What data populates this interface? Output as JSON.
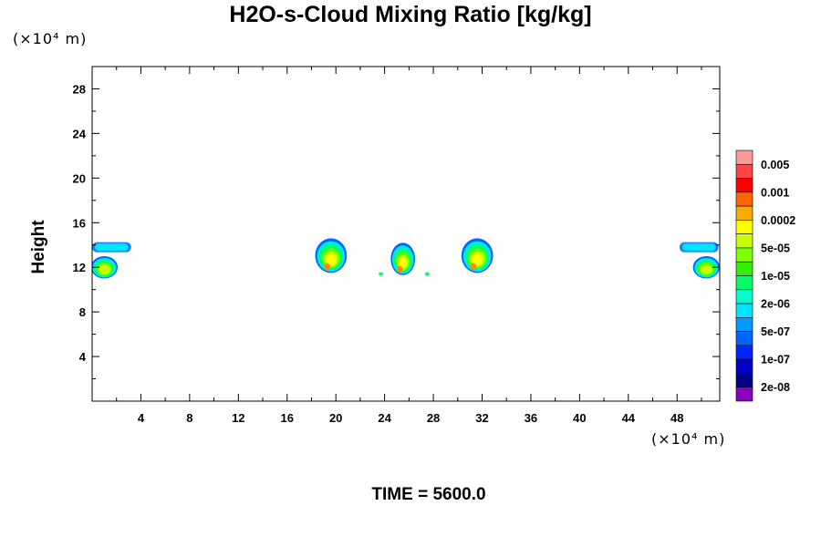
{
  "chart_data": {
    "type": "heatmap",
    "title": "H2O-s-Cloud Mixing Ratio [kg/kg]",
    "ylabel": "Height",
    "y_unit": "(×10⁴ m)",
    "x_unit": "(×10⁴ m)",
    "footer": "TIME = 5600.0",
    "xlim": [
      0,
      51.5
    ],
    "ylim": [
      0,
      30
    ],
    "xticks": [
      "4",
      "8",
      "12",
      "16",
      "20",
      "24",
      "28",
      "32",
      "36",
      "40",
      "44",
      "48"
    ],
    "yticks": [
      "4",
      "8",
      "12",
      "16",
      "20",
      "24",
      "28"
    ],
    "colorbar": {
      "labels": [
        "0.005",
        "0.001",
        "0.0002",
        "5e-05",
        "1e-05",
        "2e-06",
        "5e-07",
        "1e-07",
        "2e-08"
      ],
      "colors": [
        "#ff9999",
        "#ff4444",
        "#ff0000",
        "#ff6600",
        "#ffaa00",
        "#ffff00",
        "#c8ff00",
        "#80ff00",
        "#33ee00",
        "#00ff66",
        "#00ffcc",
        "#00e5ff",
        "#0099ff",
        "#0066ff",
        "#0022ff",
        "#0000cc",
        "#000088",
        "#8800bb"
      ]
    },
    "features": [
      {
        "kind": "anvil",
        "x_center": 1.6,
        "width": 3.2,
        "y": 13.8,
        "thickness": 0.9,
        "level": "1e-07"
      },
      {
        "kind": "core",
        "x_center": 1.0,
        "width": 2.2,
        "y_bottom": 11.0,
        "y_top": 13.0,
        "peak": "5e-05"
      },
      {
        "kind": "core",
        "x_center": 19.6,
        "width": 2.6,
        "y_bottom": 11.5,
        "y_top": 14.6,
        "peak": "0.0002"
      },
      {
        "kind": "core",
        "x_center": 25.5,
        "width": 2.0,
        "y_bottom": 11.3,
        "y_top": 14.2,
        "peak": "0.0002"
      },
      {
        "kind": "core",
        "x_center": 31.6,
        "width": 2.6,
        "y_bottom": 11.5,
        "y_top": 14.6,
        "peak": "0.0002"
      },
      {
        "kind": "anvil",
        "x_center": 49.8,
        "width": 3.2,
        "y": 13.8,
        "thickness": 0.9,
        "level": "1e-07"
      },
      {
        "kind": "core",
        "x_center": 50.4,
        "width": 2.2,
        "y_bottom": 11.0,
        "y_top": 13.0,
        "peak": "5e-05"
      }
    ]
  }
}
